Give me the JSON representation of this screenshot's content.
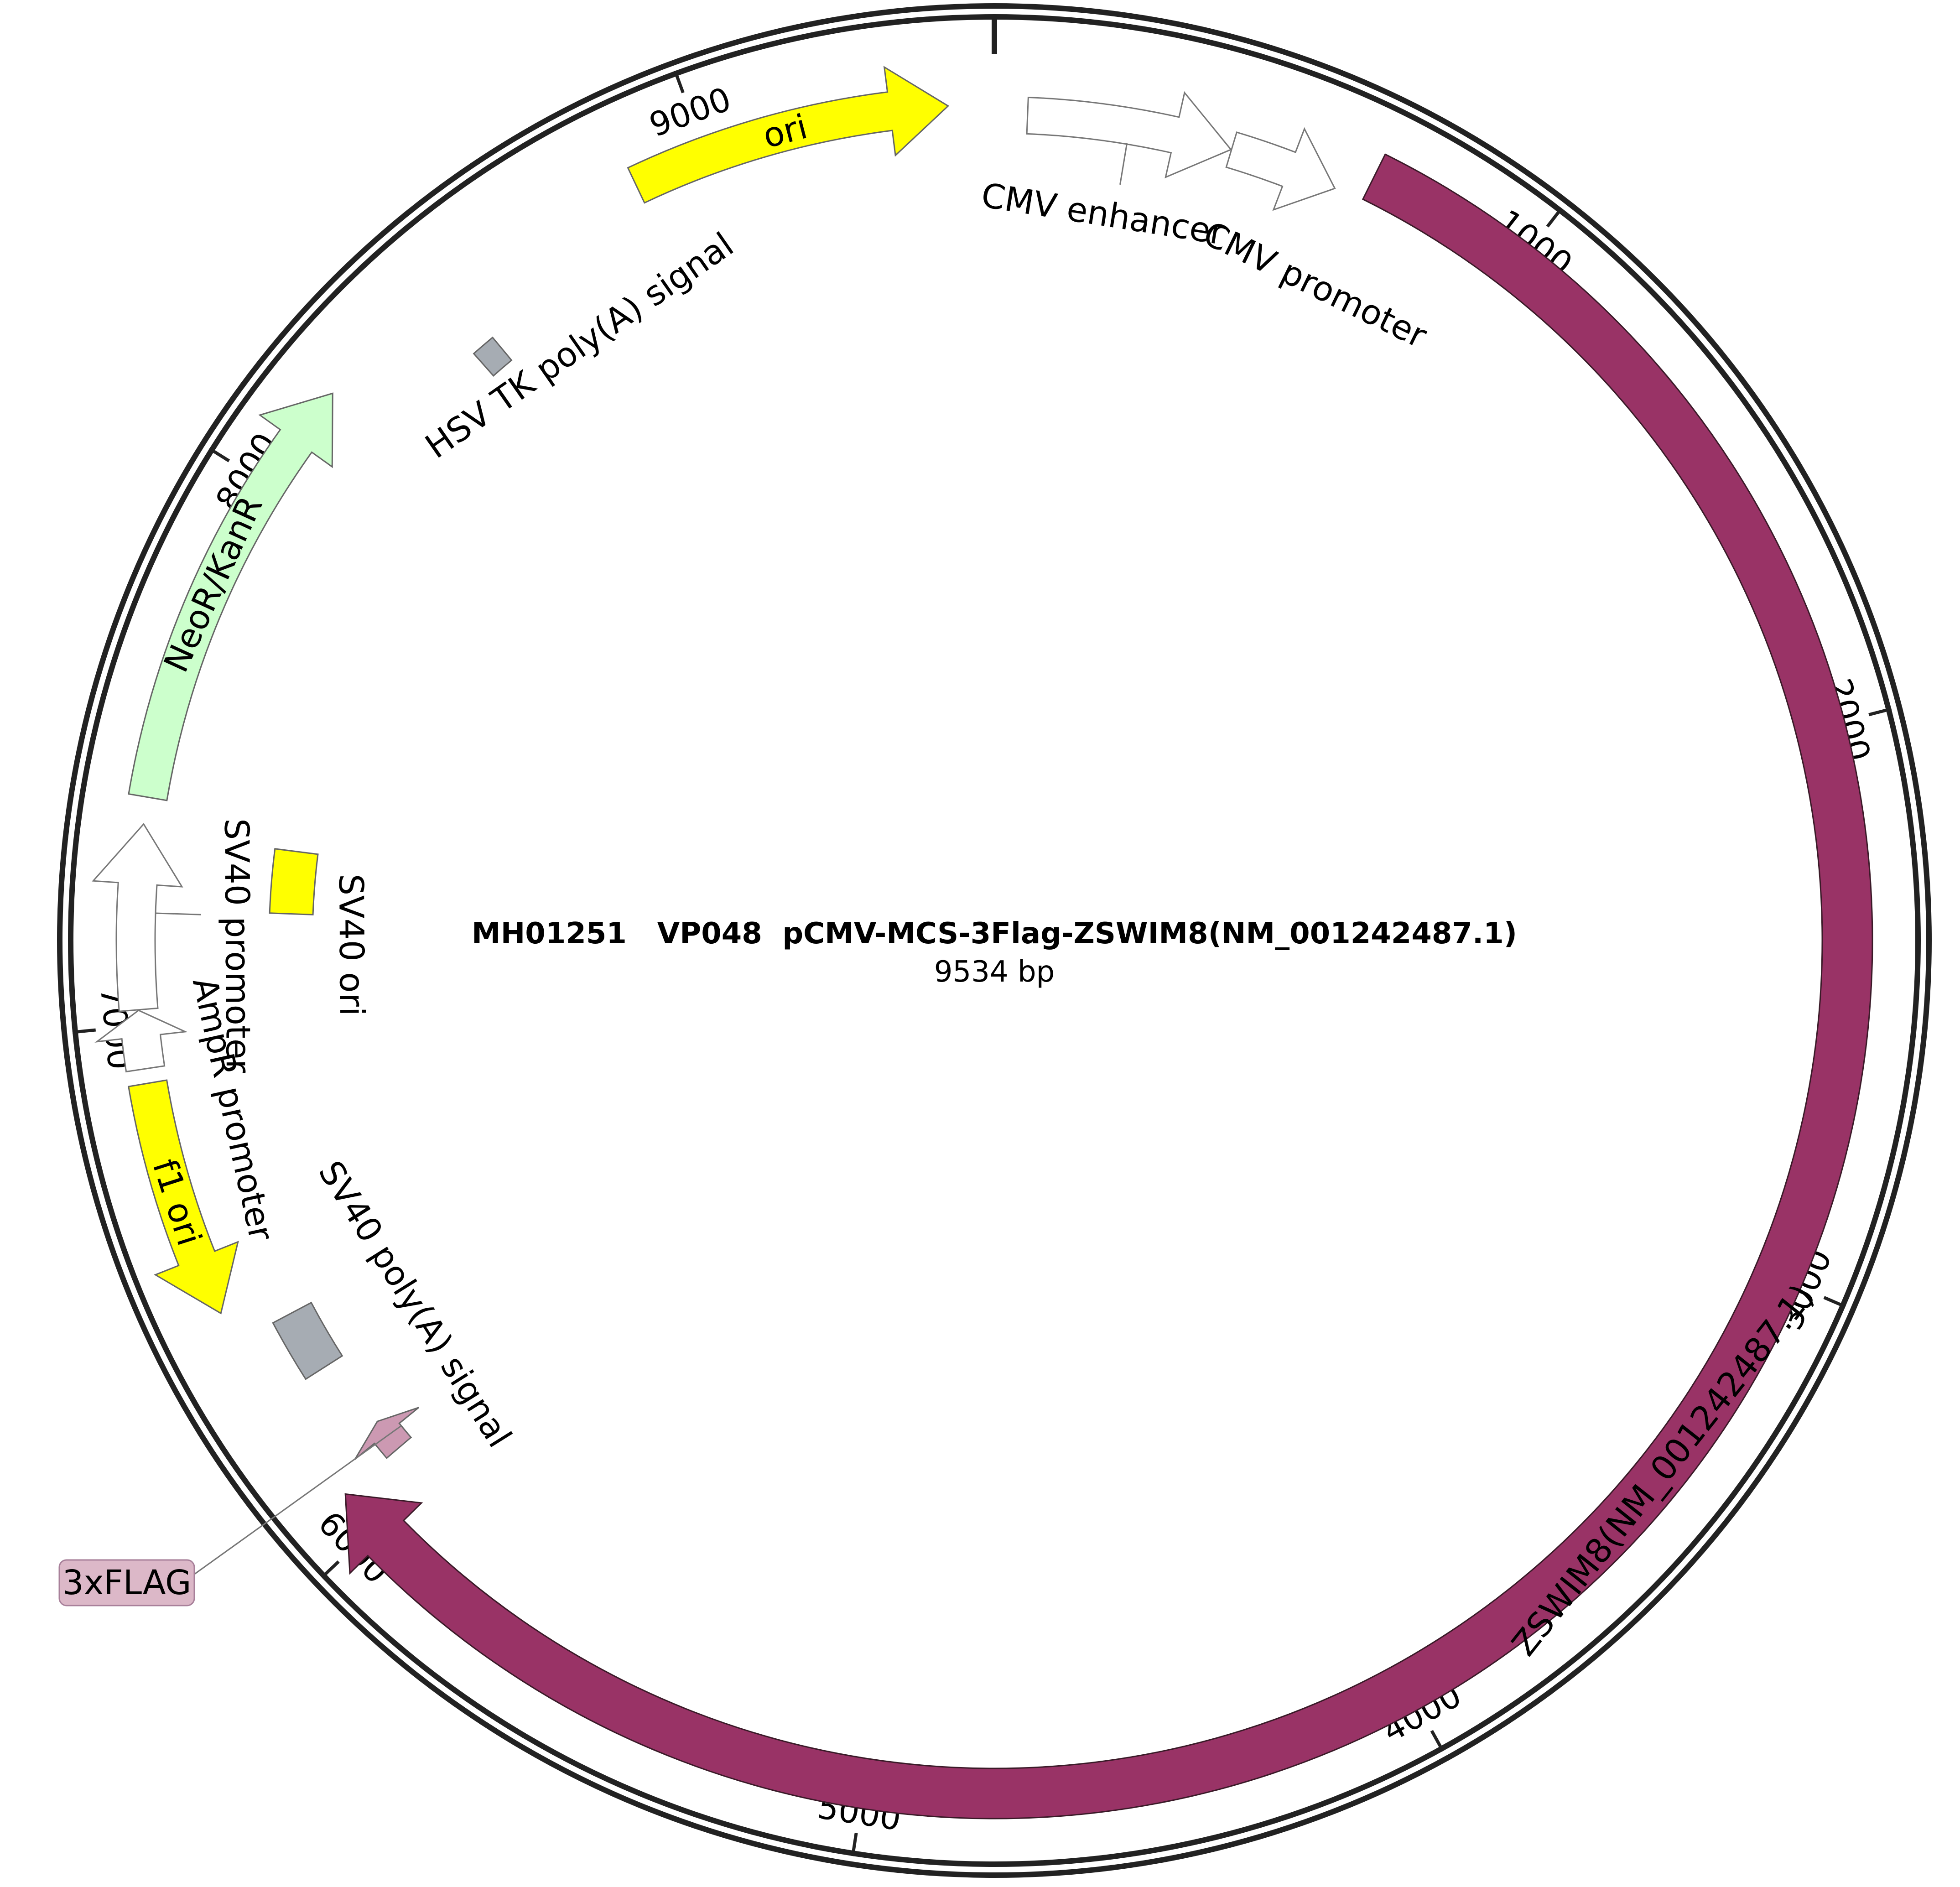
{
  "plasmid": {
    "name": "MH01251   VP048  pCMV-MCS-3Flag-ZSWIM8(NM_001242487.1)",
    "length_label": "9534 bp",
    "total_bp": 9534
  },
  "ticks": [
    {
      "pos": 1000,
      "label": "1000"
    },
    {
      "pos": 2000,
      "label": "2000"
    },
    {
      "pos": 3000,
      "label": "3000"
    },
    {
      "pos": 4000,
      "label": "4000"
    },
    {
      "pos": 5000,
      "label": "5000"
    },
    {
      "pos": 6000,
      "label": "6000"
    },
    {
      "pos": 7000,
      "label": "7000"
    },
    {
      "pos": 8000,
      "label": "8000"
    },
    {
      "pos": 9000,
      "label": "9000"
    }
  ],
  "features": [
    {
      "id": "cmv-enhancer",
      "label": "CMV enhancer",
      "start": 61,
      "end": 441,
      "strand": 1,
      "color": "#ffffff",
      "text_color": "#000000"
    },
    {
      "id": "cmv-promoter",
      "label": "CMV promoter",
      "start": 442,
      "end": 645,
      "strand": 1,
      "color": "#ffffff",
      "text_color": "#000000"
    },
    {
      "id": "zswim8",
      "label": "ZSWIM8(NM_001242487.1)",
      "start": 700,
      "end": 6079,
      "strand": 1,
      "color": "#993366",
      "text_color": "#ffffff"
    },
    {
      "id": "3xflag",
      "label": "3xFLAG",
      "start": 6080,
      "end": 6146,
      "strand": 1,
      "color": "#cc99b2",
      "text_color": "#000000"
    },
    {
      "id": "sv40-polya",
      "label": "SV40 poly(A) signal",
      "start": 6290,
      "end": 6411,
      "strand": 0,
      "color": "#a6acb3",
      "text_color": "#000000"
    },
    {
      "id": "f1-ori",
      "label": "f1 ori",
      "start": 6469,
      "end": 6897,
      "strand": -1,
      "color": "#ffff00",
      "text_color": "#000000"
    },
    {
      "id": "ampr-promoter",
      "label": "AmpR promoter",
      "start": 6923,
      "end": 7027,
      "strand": 1,
      "color": "#ffffff",
      "text_color": "#000000"
    },
    {
      "id": "sv40-promoter",
      "label": "SV40 promoter",
      "start": 7028,
      "end": 7357,
      "strand": 1,
      "color": "#ffffff",
      "text_color": "#000000"
    },
    {
      "id": "sv40-ori",
      "label": "SV40 ori",
      "start": 7208,
      "end": 7343,
      "strand": 0,
      "color": "#ffff00",
      "text_color": "#000000"
    },
    {
      "id": "neor-kanr",
      "label": "NeoR/KanR",
      "start": 7405,
      "end": 8199,
      "strand": 1,
      "color": "#ccffcc",
      "text_color": "#000000"
    },
    {
      "id": "hsv-tk-polya",
      "label": "HSV TK poly(A) signal",
      "start": 8433,
      "end": 8481,
      "strand": 0,
      "color": "#a6acb3",
      "text_color": "#000000"
    },
    {
      "id": "ori",
      "label": "ori",
      "start": 8862,
      "end": 9450,
      "strand": 1,
      "color": "#ffff00",
      "text_color": "#000000"
    }
  ]
}
